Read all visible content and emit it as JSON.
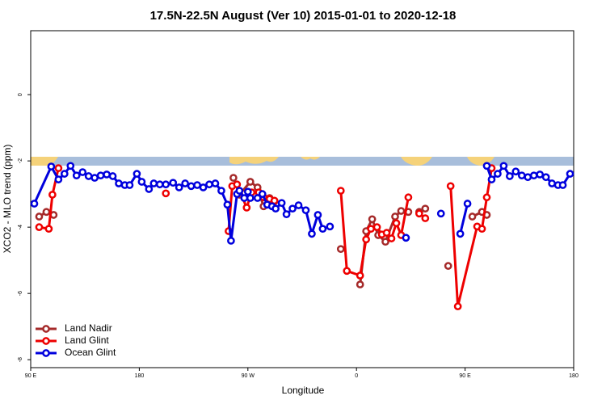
{
  "chart_data": {
    "type": "line",
    "title": "17.5N-22.5N August (Ver 10)   2015-01-01 to 2020-12-18",
    "x_label": "Longitude",
    "y_label": "XCO2 - MLO trend (ppm)",
    "xlim": [
      90,
      540
    ],
    "ylim": [
      -8.24,
      1.93
    ],
    "xticks": [
      {
        "value": 90,
        "label": "90 E"
      },
      180,
      {
        "value": 270,
        "label": "90 W"
      },
      {
        "value": 360,
        "label": "0"
      },
      {
        "value": 450,
        "label": "90 E"
      },
      {
        "value": 540,
        "label": "180"
      }
    ],
    "yticks": [
      0,
      -2,
      -4,
      -6,
      -8
    ],
    "grid": false,
    "legend": "bottom-left",
    "series": [
      {
        "name": "Land Nadir",
        "color": "#a52a2a",
        "x": [
          97,
          103,
          109,
          null,
          258,
          263,
          272,
          278,
          283,
          288,
          292,
          null,
          347,
          null,
          363,
          368,
          373,
          378,
          384,
          392,
          397,
          403,
          null,
          412,
          417,
          null,
          436,
          null,
          456,
          464,
          468
        ],
        "values": [
          -3.68,
          -3.54,
          -3.63,
          null,
          -2.51,
          -3.02,
          -2.63,
          -2.8,
          -3.37,
          -3.12,
          -3.22,
          null,
          -4.66,
          null,
          -5.73,
          -4.12,
          -3.76,
          -4.24,
          -4.44,
          -3.68,
          -3.51,
          -3.54,
          null,
          -3.54,
          -3.44,
          null,
          -5.17,
          null,
          -3.68,
          -3.54,
          -3.63
        ]
      },
      {
        "name": "Land Glint",
        "color": "#ee0000",
        "x": [
          97,
          105,
          108,
          113,
          null,
          202,
          null,
          254,
          257,
          261,
          269,
          273,
          279,
          283,
          288,
          292,
          null,
          347,
          352,
          363,
          368,
          372,
          377,
          381,
          385,
          389,
          393,
          397,
          403,
          null,
          412,
          417,
          null,
          438,
          444,
          460,
          464,
          468,
          472
        ],
        "values": [
          -4.0,
          -4.05,
          -3.02,
          -2.22,
          null,
          -2.98,
          null,
          -4.12,
          -2.76,
          -2.71,
          -3.41,
          -2.95,
          -2.95,
          -3.1,
          -3.15,
          -3.2,
          null,
          -2.9,
          -5.32,
          -5.46,
          -4.37,
          -4.05,
          -4.0,
          -4.22,
          -4.17,
          -4.34,
          -3.88,
          -4.24,
          -3.1,
          null,
          -3.59,
          -3.73,
          null,
          -2.76,
          -6.39,
          -3.98,
          -4.05,
          -3.1,
          -2.22
        ]
      },
      {
        "name": "Ocean Glint",
        "color": "#0000dd",
        "x": [
          93,
          107,
          113,
          118,
          123,
          128,
          133,
          138,
          143,
          148,
          153,
          158,
          163,
          168,
          172,
          178,
          182,
          188,
          192,
          197,
          202,
          208,
          213,
          218,
          223,
          228,
          233,
          238,
          243,
          248,
          253,
          256,
          261,
          263,
          267,
          270,
          272,
          278,
          282,
          286,
          290,
          293,
          298,
          302,
          307,
          312,
          318,
          323,
          328,
          332,
          338,
          null,
          401,
          null,
          430,
          null,
          446,
          452,
          null,
          468,
          472,
          477,
          482,
          487,
          492,
          497,
          502,
          507,
          512,
          517,
          522,
          527,
          531,
          537
        ],
        "values": [
          -3.29,
          -2.17,
          -2.56,
          -2.39,
          -2.15,
          -2.44,
          -2.34,
          -2.46,
          -2.51,
          -2.44,
          -2.41,
          -2.46,
          -2.68,
          -2.73,
          -2.73,
          -2.39,
          -2.63,
          -2.85,
          -2.68,
          -2.71,
          -2.71,
          -2.66,
          -2.8,
          -2.68,
          -2.76,
          -2.73,
          -2.8,
          -2.71,
          -2.68,
          -2.9,
          -3.32,
          -4.41,
          -3.0,
          -2.9,
          -3.12,
          -2.93,
          -3.12,
          -3.12,
          -3.0,
          -3.32,
          -3.37,
          -3.44,
          -3.27,
          -3.61,
          -3.44,
          -3.34,
          -3.49,
          -4.2,
          -3.63,
          -4.05,
          -3.98,
          null,
          -4.32,
          null,
          -3.59,
          null,
          -4.2,
          -3.29,
          null,
          -2.15,
          -2.56,
          -2.39,
          -2.15,
          -2.46,
          -2.32,
          -2.44,
          -2.49,
          -2.44,
          -2.41,
          -2.49,
          -2.68,
          -2.73,
          -2.73,
          -2.39
        ]
      }
    ]
  }
}
